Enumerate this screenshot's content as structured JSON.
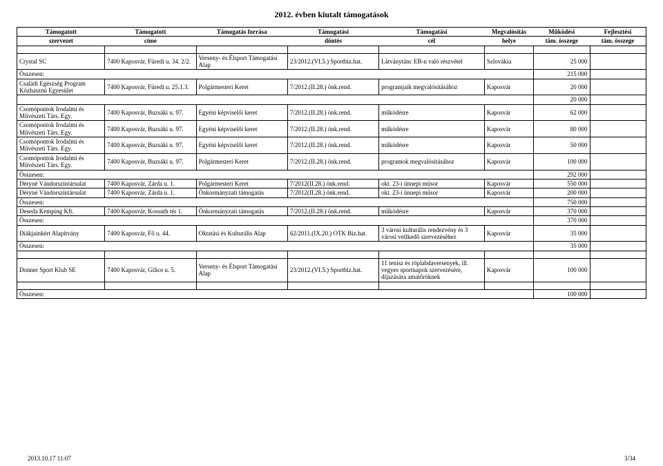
{
  "title": "2012. évben kiutalt támogatások",
  "header": {
    "row1": [
      "Támogatott",
      "Támogatott",
      "Támogatás forrása",
      "Támogatási",
      "Támogatási",
      "Megvalósítás",
      "Működési",
      "Fejlesztési"
    ],
    "row2": [
      "szervezet",
      "címe",
      "",
      "döntés",
      "cél",
      "helye",
      "tám. összege",
      "tám. összege"
    ]
  },
  "r": {
    "0": {
      "c0": "Crystal SC",
      "c1": "7400 Kaposvár, Füredi u. 34. 2/2.",
      "c2": "Verseny- és Élsport Támogatási Alap",
      "c3": "23/2012.(VI.5.) Sportbiz.hat.",
      "c4": "Látványtánc EB-n való részvétel",
      "c5": "Szlovákia",
      "c6": "25 000",
      "c7": ""
    },
    "1": {
      "sum": "Összesen:",
      "v": "215 000"
    },
    "2": {
      "c0": "Családi Egészség Program Közhasznú Egyesület",
      "c1": "7400 Kaposvár, Füredi u. 25.1.3.",
      "c2": "Polgármesteri Keret",
      "c3": "7/2012.(II.28.) önk.rend.",
      "c4": "programjaik megvalósításához",
      "c5": "Kaposvár",
      "c6": "20 000",
      "c7": ""
    },
    "3": {
      "sum": "",
      "v": "20 000"
    },
    "4": {
      "c0": "Csomópontok Irodalmi és Művészeti Társ. Egy.",
      "c1": "7400 Kaposvár, Buzsáki u. 97.",
      "c2": "Egyéni képviselői keret",
      "c3": "7/2012.(II.28.) önk.rend.",
      "c4": "működésre",
      "c5": "Kaposvár",
      "c6": "62 000",
      "c7": ""
    },
    "5": {
      "c0": "Csomópontok Irodalmi és Művészeti Társ. Egy.",
      "c1": "7400 Kaposvár, Buzsáki u. 97.",
      "c2": "Egyéni képviselői keret",
      "c3": "7/2012.(II.28.) önk.rend.",
      "c4": "működésre",
      "c5": "Kaposvár",
      "c6": "80 000",
      "c7": ""
    },
    "6": {
      "c0": "Csomópontok Irodalmi és Művészeti Társ. Egy.",
      "c1": "7400 Kaposvár, Buzsáki u. 97.",
      "c2": "Egyéni képviselői keret",
      "c3": "7/2012.(II.28.) önk.rend.",
      "c4": "működésre",
      "c5": "Kaposvár",
      "c6": "50 000",
      "c7": ""
    },
    "7": {
      "c0": "Csomópontok Irodalmi és Művészeti Társ. Egy.",
      "c1": "7400 Kaposvár, Buzsáki u. 97.",
      "c2": "Polgármesteri Keret",
      "c3": "7/2012.(II.28.) önk.rend.",
      "c4": "programok megvalósításához",
      "c5": "Kaposvár",
      "c6": "100 000",
      "c7": ""
    },
    "8": {
      "sum": "Összesen:",
      "v": "292 000"
    },
    "9": {
      "c0": "Déryné Vándorszíntársulat",
      "c1": "7400 Kaposvár, Zárda u. 1.",
      "c2": "Polgármesteri Keret",
      "c3": "7/2012(II.28.) önk.rend.",
      "c4": "okt. 23-i ünnepi műsor",
      "c5": "Kaposvár",
      "c6": "550 000",
      "c7": ""
    },
    "10": {
      "c0": "Déryné Vándorszíntársulat",
      "c1": "7400 Kaposvár, Zárda u. 1.",
      "c2": "Önkormányzati támogatás",
      "c3": "7/2012(II.28.) önk.rend.",
      "c4": "okt. 23-i ünnepi műsor",
      "c5": "Kaposvár",
      "c6": "200 000",
      "c7": ""
    },
    "11": {
      "sum": "Összesen:",
      "v": "750 000"
    },
    "12": {
      "c0": "Deseda Kemping Kft.",
      "c1": "7400 Kaposvár, Kossuth tér 1.",
      "c2": "Önkormányzati támogatás",
      "c3": "7/2012.(II.28.) önk.rend.",
      "c4": "működésre",
      "c5": "Kaposvár",
      "c6": "370 000",
      "c7": ""
    },
    "13": {
      "sum": "Összesen:",
      "v": "370 000"
    },
    "14": {
      "c0": "Diákjainkért Alapítvány",
      "c1": "7400 Kaposvár, Fő u. 44.",
      "c2": "Oktatási és Kulturális Alap",
      "c3": "62/2011.(IX.20.) OTK Biz.hat.",
      "c4": "3 városi kulturális rendezvény és 3 városi vetlkedő szervezéséhez",
      "c5": "Kaposvár",
      "c6": "35 000",
      "c7": ""
    },
    "15": {
      "sum": "Összesen:",
      "v": "35 000"
    },
    "16": {
      "c0": "Donner Sport Klub SE",
      "c1": "7400 Kaposvár, Gilice u. 5.",
      "c2": "Verseny- és Élsport Támogatási Alap",
      "c3": "23/2012.(VI.5.) Sportbiz.hat.",
      "c4": "11 tenisz és röplabdaversenyek, ill. vegyes sportnapok szervezésére, díjazására amatőröknek",
      "c5": "Kaposvár",
      "c6": "100 000",
      "c7": ""
    },
    "17": {
      "sum": "Összesen:",
      "v": "100 000"
    }
  },
  "footer": {
    "left": "2013.10.17 11:07",
    "right": "3/34"
  }
}
